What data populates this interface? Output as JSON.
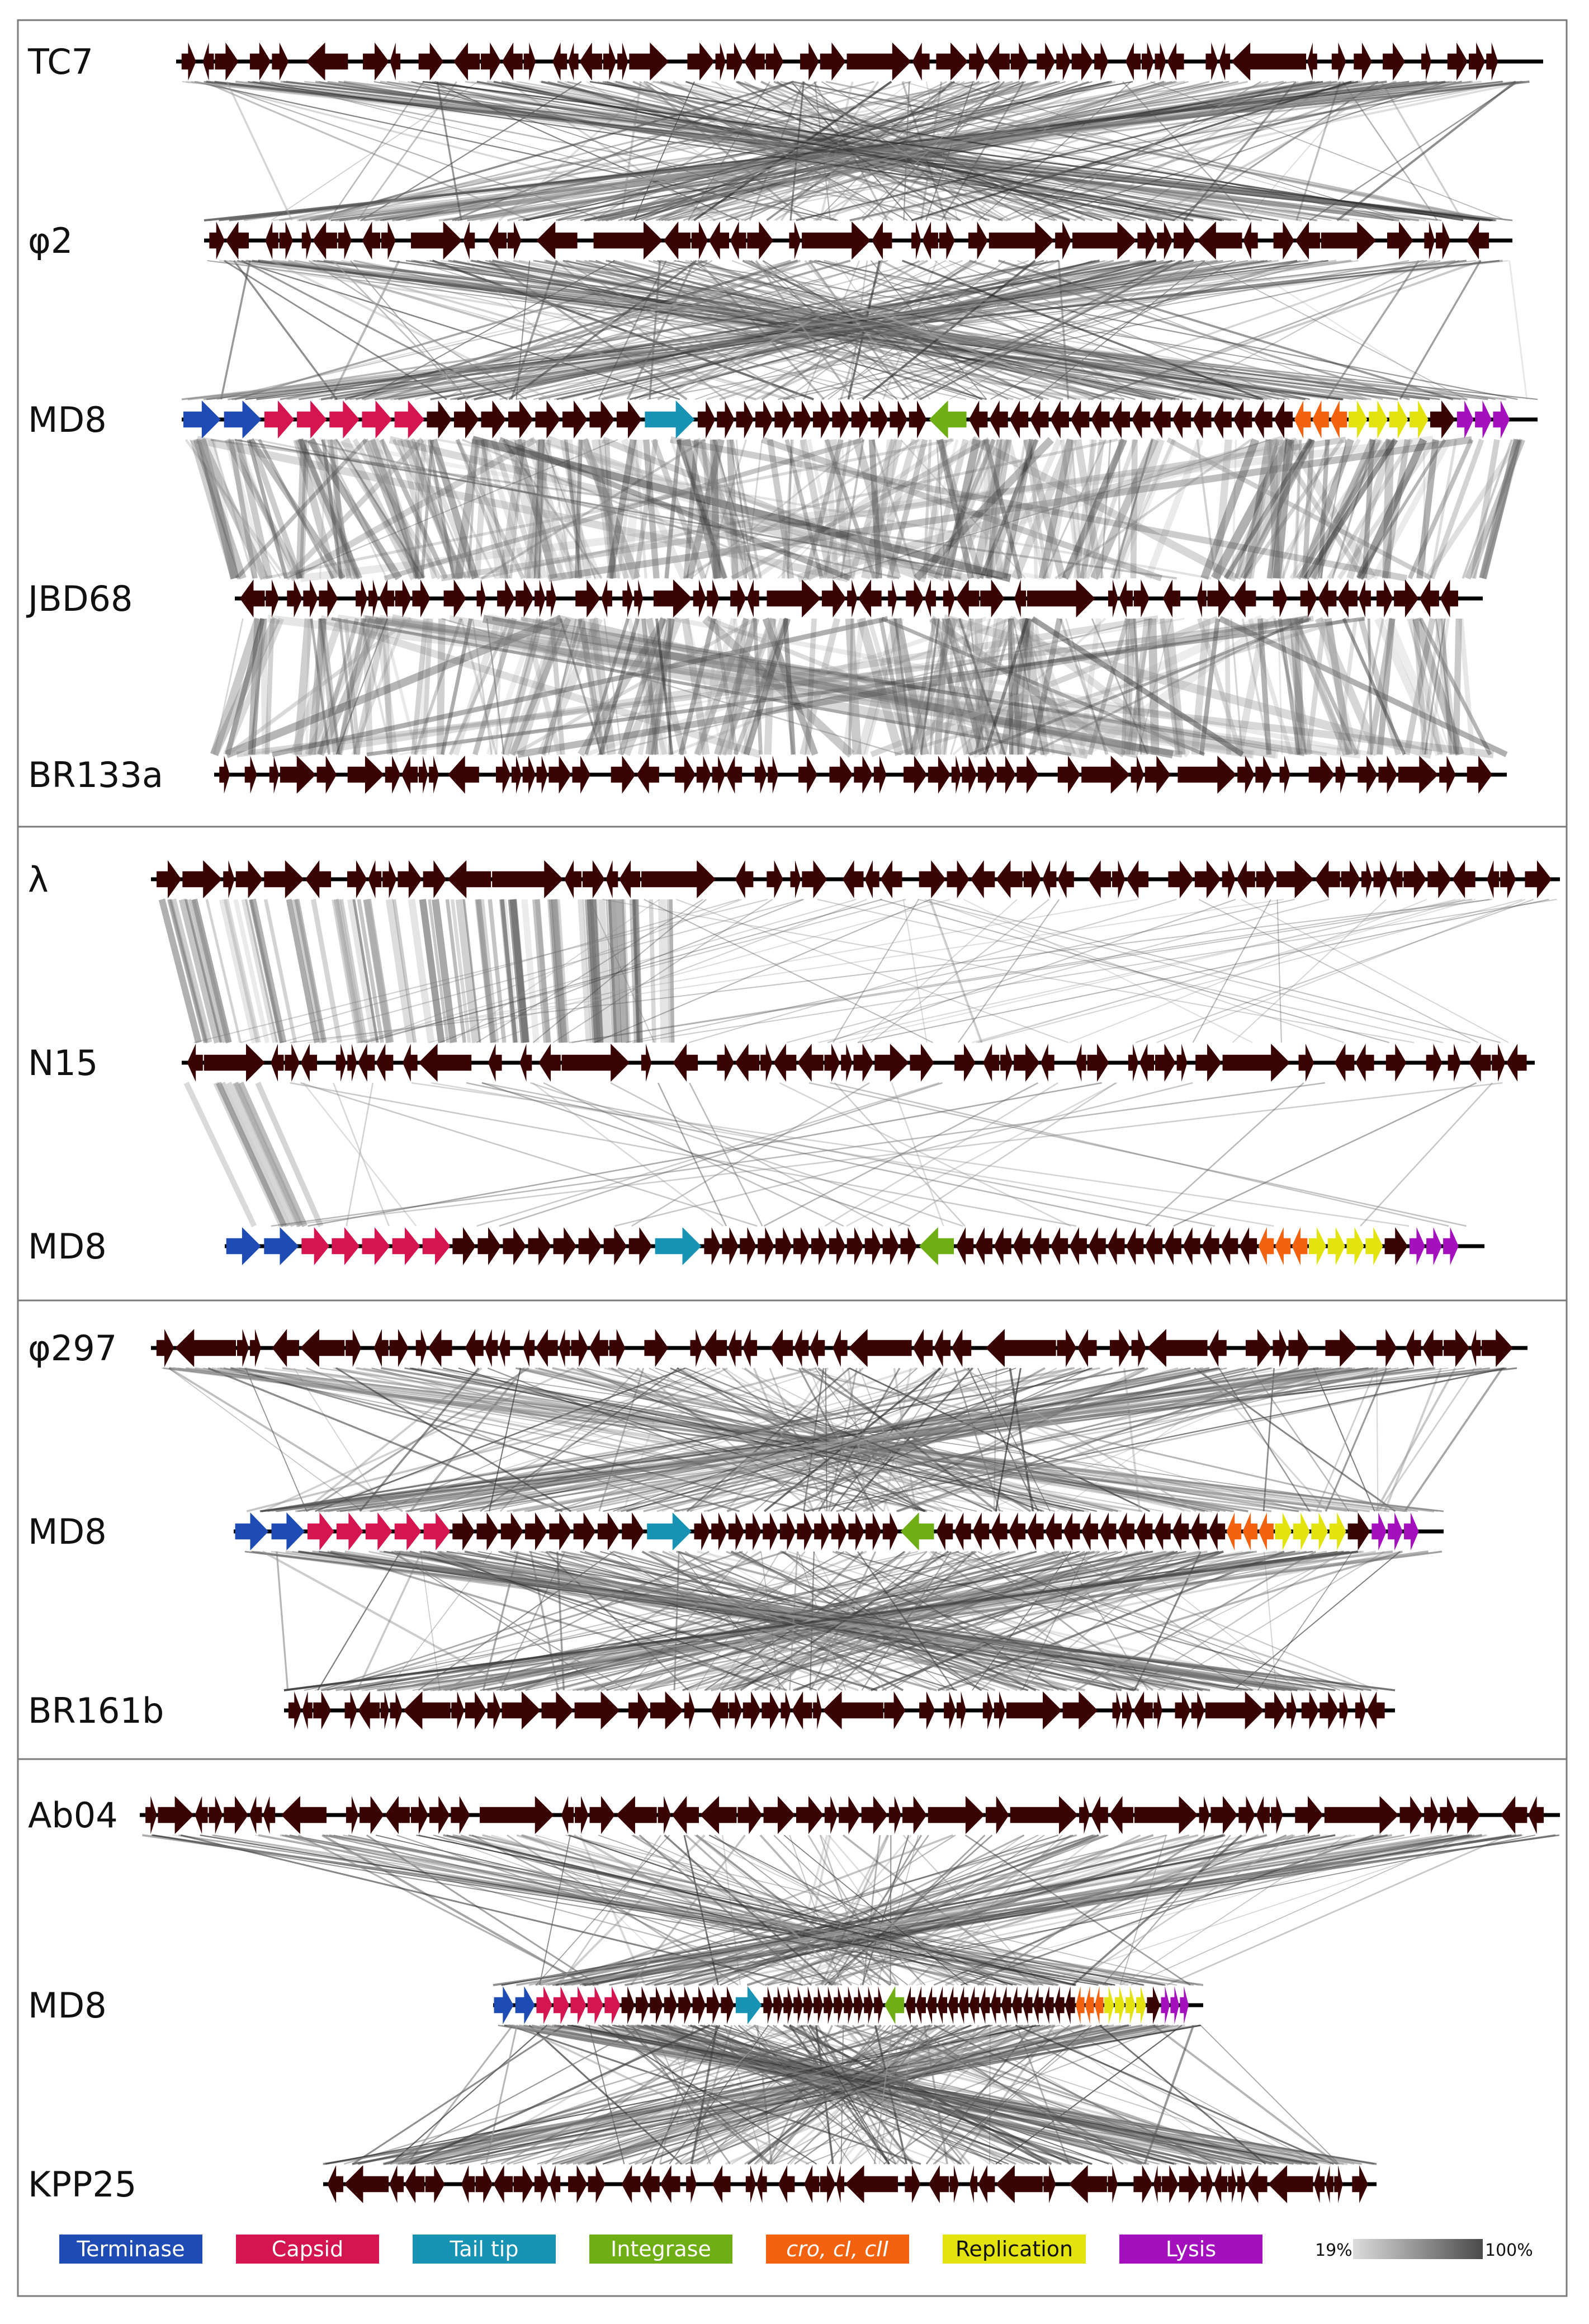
{
  "figure": {
    "panels": [
      {
        "id": "panel-1",
        "genomes": [
          {
            "name": "TC7",
            "length": 100,
            "annotated": false,
            "seed": 11,
            "density": 0.62,
            "reverse_ratio": 0.3
          },
          {
            "name": "φ2",
            "length": 96,
            "annotated": false,
            "seed": 23,
            "density": 0.7,
            "reverse_ratio": 0.45
          },
          {
            "name": "MD8",
            "length": 99,
            "annotated": true,
            "seed": 37
          },
          {
            "name": "JBD68",
            "length": 91,
            "annotated": false,
            "seed": 41,
            "density": 0.66,
            "reverse_ratio": 0.3
          },
          {
            "name": "BR133a",
            "length": 94,
            "annotated": false,
            "seed": 53,
            "density": 0.68,
            "reverse_ratio": 0.1
          }
        ],
        "links": [
          {
            "between": [
              "TC7",
              "φ2"
            ],
            "style": "crossed",
            "count": 260
          },
          {
            "between": [
              "φ2",
              "MD8"
            ],
            "style": "crossed",
            "count": 230
          },
          {
            "between": [
              "MD8",
              "JBD68"
            ],
            "style": "syntenic",
            "count": 300
          },
          {
            "between": [
              "JBD68",
              "BR133a"
            ],
            "style": "syntenic",
            "count": 260
          }
        ]
      },
      {
        "id": "panel-2",
        "genomes": [
          {
            "name": "λ",
            "length": 100,
            "annotated": false,
            "seed": 61,
            "density": 0.64,
            "reverse_ratio": 0.5
          },
          {
            "name": "N15",
            "length": 95,
            "annotated": false,
            "seed": 67,
            "density": 0.66,
            "reverse_ratio": 0.35
          },
          {
            "name": "MD8",
            "length": 89,
            "annotated": true,
            "seed": 71
          }
        ],
        "links": [
          {
            "between": [
              "λ",
              "N15"
            ],
            "style": "left-block",
            "count": 140
          },
          {
            "between": [
              "N15",
              "MD8"
            ],
            "style": "sparse",
            "count": 45
          }
        ]
      },
      {
        "id": "panel-3",
        "genomes": [
          {
            "name": "φ297",
            "length": 100,
            "annotated": false,
            "seed": 79,
            "density": 0.68,
            "reverse_ratio": 0.55
          },
          {
            "name": "MD8",
            "length": 88,
            "annotated": true,
            "seed": 83
          },
          {
            "name": "BR161b",
            "length": 80,
            "annotated": false,
            "seed": 89,
            "density": 0.7,
            "reverse_ratio": 0.2
          }
        ],
        "links": [
          {
            "between": [
              "φ297",
              "MD8"
            ],
            "style": "crossed",
            "count": 220
          },
          {
            "between": [
              "MD8",
              "BR161b"
            ],
            "style": "crossed",
            "count": 240
          }
        ]
      },
      {
        "id": "panel-4",
        "genomes": [
          {
            "name": "Ab04",
            "length": 100,
            "annotated": false,
            "seed": 97,
            "density": 0.85,
            "reverse_ratio": 0.25
          },
          {
            "name": "MD8",
            "length": 50,
            "annotated": true,
            "seed": 101
          },
          {
            "name": "KPP25",
            "length": 74,
            "annotated": false,
            "seed": 103,
            "density": 0.72,
            "reverse_ratio": 0.6
          }
        ],
        "links": [
          {
            "between": [
              "Ab04",
              "MD8"
            ],
            "style": "crossed",
            "count": 180
          },
          {
            "between": [
              "MD8",
              "KPP25"
            ],
            "style": "crossed",
            "count": 260
          }
        ]
      }
    ],
    "md8_modules": [
      {
        "category": "Terminase",
        "start": 0.0,
        "end": 0.06,
        "genes": 2,
        "strand": 1
      },
      {
        "category": "Capsid",
        "start": 0.06,
        "end": 0.18,
        "genes": 5,
        "strand": 1
      },
      {
        "category": "Other",
        "start": 0.18,
        "end": 0.34,
        "genes": 8,
        "strand": 1
      },
      {
        "category": "Tail tip",
        "start": 0.34,
        "end": 0.38,
        "genes": 1,
        "strand": 1
      },
      {
        "category": "Other",
        "start": 0.38,
        "end": 0.55,
        "genes": 12,
        "strand": 1
      },
      {
        "category": "Integrase",
        "start": 0.55,
        "end": 0.58,
        "genes": 1,
        "strand": -1
      },
      {
        "category": "Other",
        "start": 0.58,
        "end": 0.82,
        "genes": 16,
        "strand": -1
      },
      {
        "category": "cro, cI, cII",
        "start": 0.82,
        "end": 0.86,
        "genes": 3,
        "strand": -1
      },
      {
        "category": "Replication",
        "start": 0.86,
        "end": 0.92,
        "genes": 4,
        "strand": 1
      },
      {
        "category": "Other",
        "start": 0.92,
        "end": 0.94,
        "genes": 1,
        "strand": 1
      },
      {
        "category": "Lysis",
        "start": 0.94,
        "end": 0.98,
        "genes": 3,
        "strand": 1
      }
    ],
    "legend": [
      {
        "key": "terminase",
        "label": "Terminase",
        "color": "#1f4bb4",
        "text_color": "#ffffff",
        "italic": false
      },
      {
        "key": "capsid",
        "label": "Capsid",
        "color": "#d5154f",
        "text_color": "#ffffff",
        "italic": false
      },
      {
        "key": "tail-tip",
        "label": "Tail tip",
        "color": "#1893b4",
        "text_color": "#ffffff",
        "italic": false
      },
      {
        "key": "integrase",
        "label": "Integrase",
        "color": "#6fae14",
        "text_color": "#ffffff",
        "italic": false
      },
      {
        "key": "regulators",
        "label": "cro, cI, cII",
        "color": "#f2620f",
        "text_color": "#ffffff",
        "italic": true
      },
      {
        "key": "replication",
        "label": "Replication",
        "color": "#e3e30f",
        "text_color": "#111111",
        "italic": false
      },
      {
        "key": "lysis",
        "label": "Lysis",
        "color": "#a40fbe",
        "text_color": "#ffffff",
        "italic": false
      }
    ],
    "identity_scale": {
      "min_label": "19%",
      "max_label": "100%",
      "min_color": "#dcdcdc",
      "max_color": "#4a4a4a"
    },
    "colors": {
      "gene": "#3a0303",
      "backbone": "#000000",
      "link": "#2a2a2a",
      "frame": "#7a7a7a"
    }
  }
}
